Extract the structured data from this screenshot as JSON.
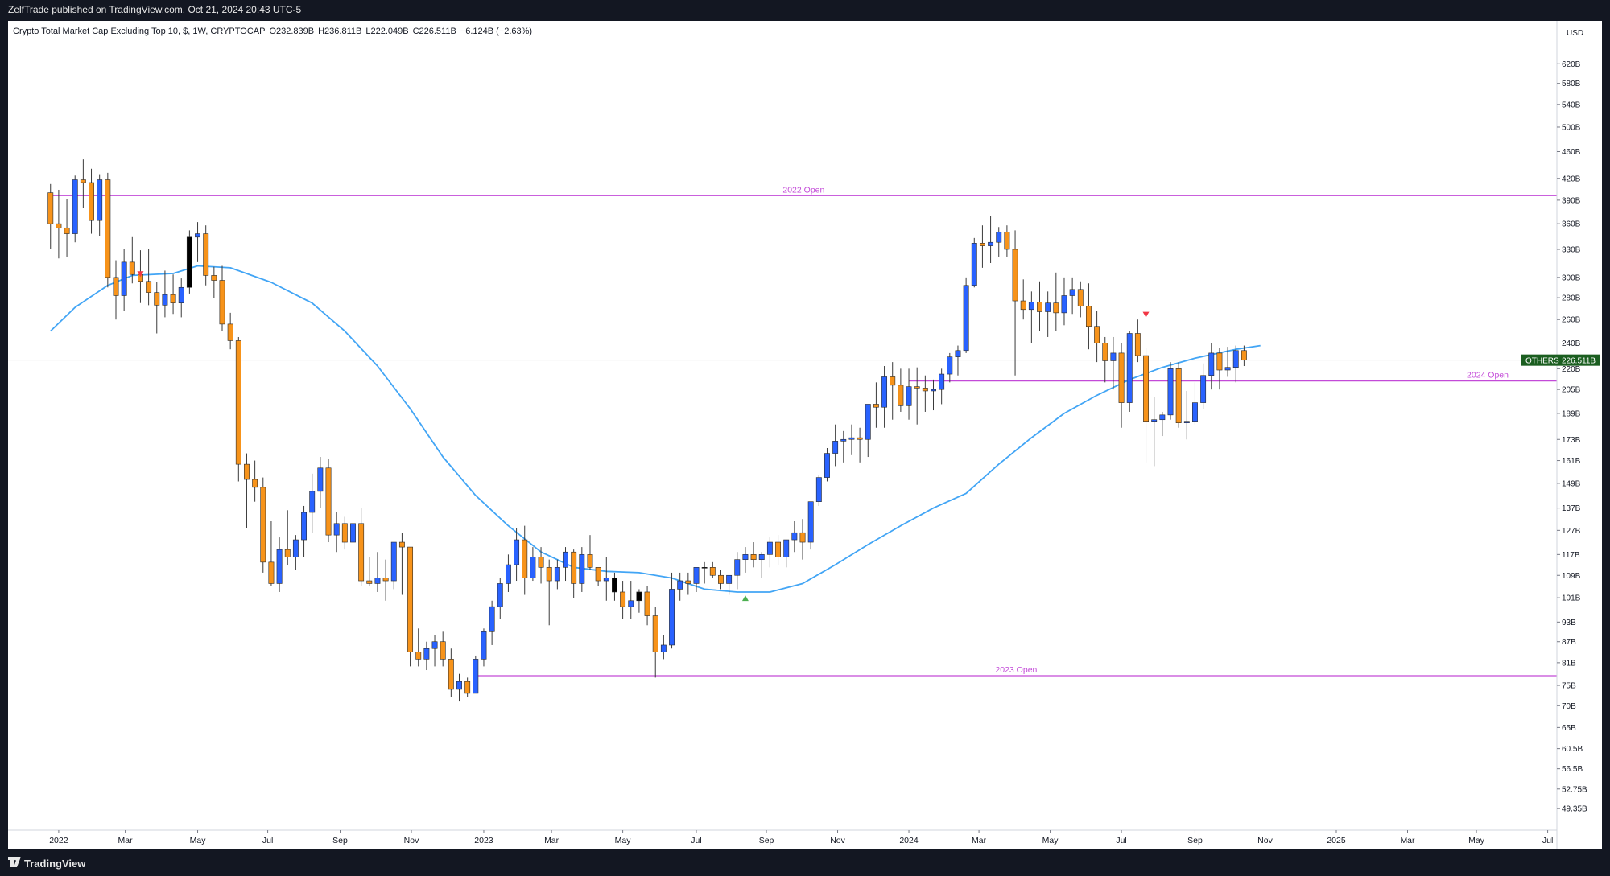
{
  "header": {
    "publish_text": "ZelfTrade published on TradingView.com, Oct 21, 2024 20:43 UTC-5"
  },
  "legend": {
    "symbol": "Crypto Total Market Cap Excluding Top 10, $, 1W, CRYPTOCAP",
    "open": "O232.839B",
    "high": "H236.811B",
    "low": "L222.049B",
    "close": "C226.511B",
    "change": "−6.124B (−2.63%)"
  },
  "footer": {
    "brand": "TradingView"
  },
  "colors": {
    "up": "#2962ff",
    "down": "#f7931a",
    "ema": "#42a5f5",
    "level": "#c34ad8",
    "tag_bg": "#1b5e20",
    "marker_down": "#f23645",
    "marker_up": "#4caf50"
  },
  "chart_data": {
    "type": "candlestick",
    "title": "Crypto Total Market Cap Excluding Top 10, $, 1W, CRYPTOCAP",
    "currency": "USD",
    "y_scale": "log",
    "ylim": [
      47,
      650
    ],
    "x_range": [
      "2021-12-27",
      "2025-07-28"
    ],
    "grid": false,
    "y_ticks": [
      "620B",
      "580B",
      "540B",
      "500B",
      "460B",
      "420B",
      "390B",
      "360B",
      "330B",
      "300B",
      "280B",
      "260B",
      "240B",
      "220B",
      "205B",
      "189B",
      "173B",
      "161B",
      "149B",
      "137B",
      "127B",
      "117B",
      "109B",
      "101B",
      "93B",
      "87B",
      "81B",
      "75B",
      "70B",
      "65B",
      "60.5B",
      "56.5B",
      "52.75B",
      "49.35B"
    ],
    "x_ticks": [
      {
        "date": "2022-01-03",
        "label": "2022"
      },
      {
        "date": "2022-03-01",
        "label": "Mar"
      },
      {
        "date": "2022-05-02",
        "label": "May"
      },
      {
        "date": "2022-07-01",
        "label": "Jul"
      },
      {
        "date": "2022-09-01",
        "label": "Sep"
      },
      {
        "date": "2022-11-01",
        "label": "Nov"
      },
      {
        "date": "2023-01-02",
        "label": "2023"
      },
      {
        "date": "2023-03-01",
        "label": "Mar"
      },
      {
        "date": "2023-05-01",
        "label": "May"
      },
      {
        "date": "2023-07-03",
        "label": "Jul"
      },
      {
        "date": "2023-09-01",
        "label": "Sep"
      },
      {
        "date": "2023-11-01",
        "label": "Nov"
      },
      {
        "date": "2024-01-01",
        "label": "2024"
      },
      {
        "date": "2024-03-01",
        "label": "Mar"
      },
      {
        "date": "2024-05-01",
        "label": "May"
      },
      {
        "date": "2024-07-01",
        "label": "Jul"
      },
      {
        "date": "2024-09-02",
        "label": "Sep"
      },
      {
        "date": "2024-11-01",
        "label": "Nov"
      },
      {
        "date": "2025-01-01",
        "label": "2025"
      },
      {
        "date": "2025-03-03",
        "label": "Mar"
      },
      {
        "date": "2025-05-01",
        "label": "May"
      },
      {
        "date": "2025-07-01",
        "label": "Jul"
      }
    ],
    "levels": [
      {
        "label": "2022 Open",
        "value": 396,
        "from": "2021-12-27"
      },
      {
        "label": "2023 Open",
        "value": 77.5,
        "from": "2022-12-26"
      },
      {
        "label": "2024 Open",
        "value": 211,
        "from": "2024-01-01"
      }
    ],
    "last_price": {
      "label": "OTHERS",
      "value": 226.511,
      "text": "226.511B"
    },
    "markers": [
      {
        "date": "2022-03-14",
        "dir": "down",
        "value": 303
      },
      {
        "date": "2023-08-14",
        "dir": "up",
        "value": 101
      },
      {
        "date": "2024-07-22",
        "dir": "down",
        "value": 264
      }
    ],
    "candles": {
      "start": "2021-12-27",
      "interval_days": 7,
      "ohlc": [
        [
          400,
          412,
          330,
          360
        ],
        [
          360,
          404,
          320,
          355
        ],
        [
          355,
          392,
          322,
          348
        ],
        [
          348,
          424,
          338,
          418
        ],
        [
          418,
          448,
          380,
          414
        ],
        [
          414,
          434,
          348,
          364
        ],
        [
          364,
          426,
          345,
          418
        ],
        [
          418,
          428,
          290,
          300
        ],
        [
          300,
          318,
          260,
          282
        ],
        [
          282,
          330,
          268,
          316
        ],
        [
          316,
          344,
          294,
          303
        ],
        [
          303,
          329,
          275,
          296
        ],
        [
          296,
          330,
          273,
          285
        ],
        [
          285,
          295,
          248,
          273
        ],
        [
          273,
          307,
          262,
          283
        ],
        [
          283,
          303,
          265,
          275
        ],
        [
          275,
          299,
          262,
          290
        ],
        [
          290,
          352,
          284,
          344
        ],
        [
          344,
          362,
          316,
          348
        ],
        [
          348,
          358,
          292,
          302
        ],
        [
          302,
          311,
          280,
          297
        ],
        [
          297,
          312,
          250,
          256
        ],
        [
          256,
          266,
          235,
          242
        ],
        [
          242,
          245,
          150,
          159
        ],
        [
          159,
          165,
          128,
          151
        ],
        [
          151,
          161,
          140,
          147
        ],
        [
          147,
          152,
          110,
          114
        ],
        [
          114,
          131,
          105,
          106
        ],
        [
          106,
          124,
          103,
          119
        ],
        [
          119,
          136,
          113,
          116
        ],
        [
          116,
          125,
          111,
          123
        ],
        [
          123,
          138,
          116,
          135
        ],
        [
          135,
          154,
          126,
          145
        ],
        [
          145,
          163,
          137,
          157
        ],
        [
          157,
          162,
          122,
          125
        ],
        [
          125,
          135,
          118,
          130
        ],
        [
          130,
          133,
          119,
          122
        ],
        [
          122,
          134,
          114,
          130
        ],
        [
          130,
          137,
          105,
          107
        ],
        [
          107,
          116,
          105,
          106
        ],
        [
          106,
          118,
          103,
          108
        ],
        [
          108,
          115,
          100,
          107
        ],
        [
          107,
          122,
          104,
          122
        ],
        [
          122,
          126,
          102,
          120
        ],
        [
          120,
          120,
          80,
          84
        ],
        [
          84,
          91,
          80,
          82
        ],
        [
          82,
          87,
          79,
          85
        ],
        [
          85,
          89,
          80,
          87
        ],
        [
          87,
          90,
          80,
          82
        ],
        [
          82,
          85,
          72,
          74
        ],
        [
          74,
          78,
          71,
          76
        ],
        [
          76,
          77,
          72,
          73
        ],
        [
          73,
          83,
          73,
          82
        ],
        [
          82,
          91,
          80,
          90
        ],
        [
          90,
          100,
          86,
          98
        ],
        [
          98,
          108,
          94,
          106
        ],
        [
          106,
          117,
          103,
          113
        ],
        [
          113,
          128,
          107,
          123
        ],
        [
          123,
          129,
          102,
          108
        ],
        [
          108,
          120,
          107,
          116
        ],
        [
          116,
          120,
          106,
          112
        ],
        [
          112,
          115,
          92,
          107
        ],
        [
          107,
          115,
          104,
          112
        ],
        [
          112,
          120,
          107,
          118
        ],
        [
          118,
          119,
          101,
          106
        ],
        [
          106,
          120,
          103,
          117
        ],
        [
          117,
          125,
          111,
          112
        ],
        [
          112,
          110,
          105,
          107
        ],
        [
          107,
          116,
          100,
          108
        ],
        [
          108,
          110,
          100,
          103
        ],
        [
          103,
          107,
          94,
          98
        ],
        [
          98,
          107,
          94,
          100
        ],
        [
          100,
          104,
          96,
          103
        ],
        [
          103,
          105,
          92,
          95
        ],
        [
          95,
          98,
          77,
          84
        ],
        [
          84,
          89,
          82,
          86
        ],
        [
          86,
          110,
          85,
          104
        ],
        [
          104,
          110,
          100,
          107
        ],
        [
          107,
          110,
          102,
          106
        ],
        [
          106,
          112,
          103,
          112
        ],
        [
          112,
          114,
          106,
          112
        ],
        [
          112,
          114,
          108,
          109
        ],
        [
          109,
          111,
          104,
          106
        ],
        [
          106,
          108,
          102,
          109
        ],
        [
          109,
          118,
          104,
          115
        ],
        [
          115,
          120,
          110,
          117
        ],
        [
          117,
          122,
          112,
          115
        ],
        [
          115,
          118,
          108,
          117
        ],
        [
          117,
          124,
          112,
          122
        ],
        [
          122,
          125,
          113,
          116
        ],
        [
          116,
          120,
          112,
          123
        ],
        [
          123,
          131,
          118,
          126
        ],
        [
          126,
          132,
          115,
          122
        ],
        [
          122,
          140,
          119,
          140
        ],
        [
          140,
          153,
          138,
          152
        ],
        [
          152,
          168,
          150,
          165
        ],
        [
          165,
          182,
          158,
          172
        ],
        [
          172,
          178,
          160,
          173
        ],
        [
          173,
          182,
          164,
          174
        ],
        [
          174,
          180,
          160,
          173
        ],
        [
          173,
          195,
          163,
          195
        ],
        [
          195,
          210,
          180,
          193
        ],
        [
          193,
          222,
          180,
          214
        ],
        [
          214,
          225,
          185,
          208
        ],
        [
          208,
          220,
          190,
          194
        ],
        [
          194,
          220,
          185,
          207
        ],
        [
          207,
          221,
          182,
          206
        ],
        [
          206,
          215,
          190,
          204
        ],
        [
          204,
          212,
          191,
          205
        ],
        [
          205,
          220,
          195,
          216
        ],
        [
          216,
          232,
          210,
          229
        ],
        [
          229,
          238,
          215,
          234
        ],
        [
          234,
          300,
          232,
          292
        ],
        [
          292,
          343,
          290,
          337
        ],
        [
          337,
          358,
          310,
          334
        ],
        [
          334,
          370,
          315,
          338
        ],
        [
          338,
          356,
          322,
          350
        ],
        [
          350,
          358,
          322,
          330
        ],
        [
          330,
          352,
          215,
          277
        ],
        [
          277,
          298,
          260,
          269
        ],
        [
          269,
          286,
          240,
          276
        ],
        [
          276,
          296,
          250,
          267
        ],
        [
          267,
          286,
          245,
          275
        ],
        [
          275,
          305,
          250,
          266
        ],
        [
          266,
          300,
          255,
          282
        ],
        [
          282,
          300,
          265,
          288
        ],
        [
          288,
          296,
          262,
          272
        ],
        [
          272,
          294,
          235,
          254
        ],
        [
          254,
          268,
          225,
          240
        ],
        [
          240,
          245,
          210,
          226
        ],
        [
          226,
          245,
          205,
          232
        ],
        [
          232,
          240,
          180,
          196
        ],
        [
          196,
          250,
          190,
          248
        ],
        [
          248,
          260,
          225,
          230
        ],
        [
          230,
          236,
          160,
          184
        ],
        [
          184,
          200,
          158,
          185
        ],
        [
          185,
          190,
          175,
          188
        ],
        [
          188,
          225,
          185,
          220
        ],
        [
          220,
          225,
          180,
          183
        ],
        [
          183,
          204,
          173,
          184
        ],
        [
          184,
          210,
          182,
          196
        ],
        [
          196,
          224,
          192,
          215
        ],
        [
          215,
          240,
          205,
          232
        ],
        [
          232,
          236,
          205,
          219
        ],
        [
          219,
          237,
          214,
          221
        ],
        [
          221,
          238,
          210,
          234
        ],
        [
          234,
          238,
          222,
          226.511
        ]
      ],
      "special_candles": [
        {
          "date": "2022-04-25",
          "fill": "#000000"
        },
        {
          "date": "2023-04-24",
          "fill": "#000000"
        },
        {
          "date": "2023-05-15",
          "fill": "#000000"
        },
        {
          "date": "2023-07-10",
          "fill": "#000000"
        }
      ]
    },
    "series": [
      {
        "name": "EMA",
        "points": [
          [
            "2021-12-27",
            250
          ],
          [
            "2022-01-17",
            271
          ],
          [
            "2022-02-14",
            292
          ],
          [
            "2022-03-07",
            302
          ],
          [
            "2022-04-11",
            304
          ],
          [
            "2022-05-02",
            312
          ],
          [
            "2022-05-30",
            310
          ],
          [
            "2022-07-04",
            295
          ],
          [
            "2022-08-08",
            275
          ],
          [
            "2022-09-05",
            250
          ],
          [
            "2022-10-03",
            222
          ],
          [
            "2022-10-31",
            192
          ],
          [
            "2022-11-28",
            163
          ],
          [
            "2022-12-26",
            143
          ],
          [
            "2023-01-23",
            129
          ],
          [
            "2023-02-20",
            118
          ],
          [
            "2023-03-20",
            112
          ],
          [
            "2023-04-17",
            110.5
          ],
          [
            "2023-05-15",
            110
          ],
          [
            "2023-06-12",
            108
          ],
          [
            "2023-07-10",
            104
          ],
          [
            "2023-08-07",
            103
          ],
          [
            "2023-09-04",
            103
          ],
          [
            "2023-10-02",
            106
          ],
          [
            "2023-10-30",
            113
          ],
          [
            "2023-11-27",
            121
          ],
          [
            "2023-12-25",
            129
          ],
          [
            "2024-01-22",
            137
          ],
          [
            "2024-02-19",
            144
          ],
          [
            "2024-03-18",
            159
          ],
          [
            "2024-04-15",
            174
          ],
          [
            "2024-05-13",
            189
          ],
          [
            "2024-06-10",
            201
          ],
          [
            "2024-07-08",
            212
          ],
          [
            "2024-08-05",
            221
          ],
          [
            "2024-09-02",
            228
          ],
          [
            "2024-10-07",
            235
          ],
          [
            "2024-10-28",
            238
          ]
        ]
      }
    ]
  }
}
